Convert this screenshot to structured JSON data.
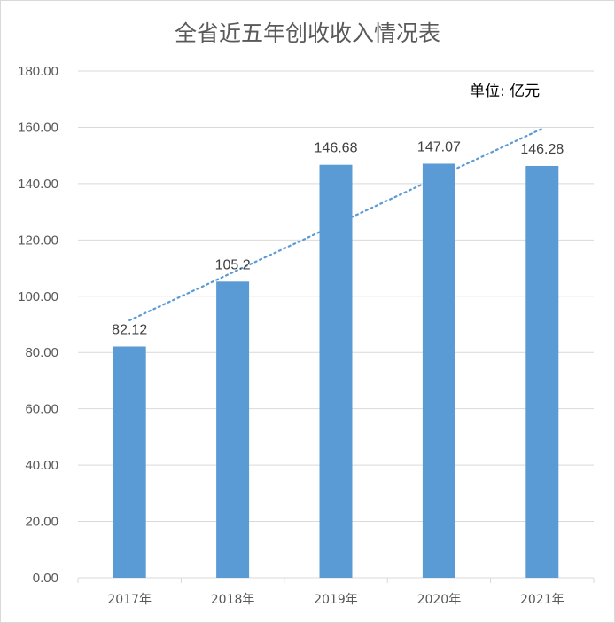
{
  "chart_data": {
    "type": "bar",
    "title": "全省近五年创收收入情况表",
    "unit_label": "单位: 亿元",
    "categories": [
      "2017年",
      "2018年",
      "2019年",
      "2020年",
      "2021年"
    ],
    "values": [
      82.12,
      105.2,
      146.68,
      147.07,
      146.28
    ],
    "data_labels": [
      "82.12",
      "105.2",
      "146.68",
      "147.07",
      "146.28"
    ],
    "ylim": [
      0,
      180
    ],
    "yticks": [
      0,
      20,
      40,
      60,
      80,
      100,
      120,
      140,
      160,
      180
    ],
    "ytick_labels": [
      "0.00",
      "20.00",
      "40.00",
      "60.00",
      "80.00",
      "100.00",
      "120.00",
      "140.00",
      "160.00",
      "180.00"
    ],
    "trendline": {
      "type": "linear",
      "style": "dotted",
      "color": "#5b9bd5"
    },
    "grid": true,
    "bar_color": "#5b9bd5",
    "gridline_color": "#d9d9d9"
  }
}
